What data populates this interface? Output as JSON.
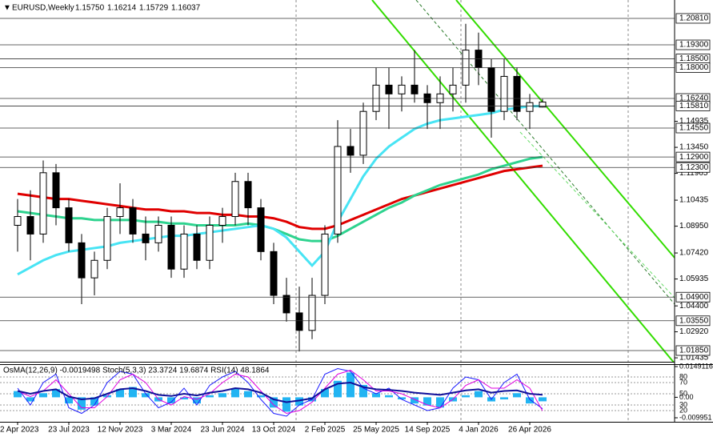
{
  "chart_data": [
    {
      "type": "candlestick",
      "title": "EURUSD,Weekly",
      "quote": [
        "1.15750",
        "1.16214",
        "1.15729",
        "1.16037"
      ],
      "x": [
        "2023-04-02",
        "2023-04-30",
        "2023-05-28",
        "2023-06-25",
        "2023-07-23",
        "2023-08-20",
        "2023-09-17",
        "2023-10-15",
        "2023-11-12",
        "2023-12-10",
        "2024-01-07",
        "2024-02-04",
        "2024-03-03",
        "2024-03-31",
        "2024-04-28",
        "2024-05-26",
        "2024-06-23",
        "2024-07-21",
        "2024-08-18",
        "2024-09-15",
        "2024-10-13",
        "2024-11-10",
        "2024-12-08",
        "2025-01-05",
        "2025-02-02",
        "2025-03-02",
        "2025-03-30",
        "2025-04-27",
        "2025-05-25",
        "2025-06-22",
        "2025-07-20",
        "2025-08-17",
        "2025-09-14",
        "2025-10-12",
        "2025-11-09",
        "2025-12-07",
        "2026-01-04",
        "2026-02-01",
        "2026-03-01",
        "2026-03-29",
        "2026-04-26",
        "2026-05-24"
      ],
      "open": [
        1.09,
        1.095,
        1.085,
        1.12,
        1.1,
        1.08,
        1.06,
        1.07,
        1.095,
        1.1,
        1.085,
        1.08,
        1.09,
        1.065,
        1.085,
        1.07,
        1.09,
        1.095,
        1.115,
        1.1,
        1.075,
        1.05,
        1.04,
        1.03,
        1.05,
        1.085,
        1.135,
        1.13,
        1.155,
        1.17,
        1.165,
        1.17,
        1.165,
        1.16,
        1.165,
        1.17,
        1.19,
        1.18,
        1.155,
        1.175,
        1.155,
        1.1575
      ],
      "high": [
        1.105,
        1.11,
        1.127,
        1.125,
        1.105,
        1.085,
        1.075,
        1.1,
        1.114,
        1.105,
        1.095,
        1.095,
        1.095,
        1.09,
        1.09,
        1.095,
        1.1,
        1.12,
        1.12,
        1.105,
        1.08,
        1.06,
        1.055,
        1.06,
        1.09,
        1.15,
        1.145,
        1.16,
        1.18,
        1.18,
        1.175,
        1.19,
        1.17,
        1.175,
        1.18,
        1.205,
        1.2,
        1.185,
        1.185,
        1.18,
        1.165,
        1.16214
      ],
      "low": [
        1.075,
        1.07,
        1.08,
        1.09,
        1.075,
        1.045,
        1.05,
        1.065,
        1.085,
        1.08,
        1.07,
        1.075,
        1.06,
        1.06,
        1.065,
        1.065,
        1.08,
        1.09,
        1.09,
        1.07,
        1.045,
        1.035,
        1.018,
        1.025,
        1.045,
        1.08,
        1.12,
        1.125,
        1.15,
        1.145,
        1.155,
        1.16,
        1.145,
        1.145,
        1.155,
        1.16,
        1.17,
        1.14,
        1.15,
        1.15,
        1.145,
        1.15729
      ],
      "close": [
        1.095,
        1.085,
        1.12,
        1.1,
        1.08,
        1.06,
        1.07,
        1.095,
        1.1,
        1.085,
        1.08,
        1.09,
        1.065,
        1.085,
        1.07,
        1.09,
        1.095,
        1.115,
        1.1,
        1.075,
        1.05,
        1.04,
        1.03,
        1.05,
        1.085,
        1.135,
        1.13,
        1.155,
        1.17,
        1.165,
        1.17,
        1.165,
        1.16,
        1.165,
        1.17,
        1.19,
        1.18,
        1.155,
        1.175,
        1.155,
        1.16,
        1.16037
      ],
      "lines": [
        {
          "color": "#e00000",
          "values": [
            1.108,
            1.107,
            1.106,
            1.105,
            1.105,
            1.104,
            1.103,
            1.102,
            1.101,
            1.1,
            1.099,
            1.099,
            1.098,
            1.098,
            1.097,
            1.097,
            1.096,
            1.096,
            1.095,
            1.095,
            1.094,
            1.092,
            1.089,
            1.088,
            1.088,
            1.09,
            1.093,
            1.096,
            1.099,
            1.102,
            1.105,
            1.107,
            1.109,
            1.111,
            1.113,
            1.115,
            1.117,
            1.119,
            1.121,
            1.122,
            1.123,
            1.124
          ]
        },
        {
          "color": "#2ed38f",
          "values": [
            1.098,
            1.097,
            1.096,
            1.095,
            1.094,
            1.094,
            1.093,
            1.093,
            1.093,
            1.093,
            1.092,
            1.092,
            1.091,
            1.091,
            1.09,
            1.09,
            1.09,
            1.09,
            1.091,
            1.09,
            1.088,
            1.085,
            1.082,
            1.081,
            1.081,
            1.084,
            1.088,
            1.092,
            1.096,
            1.1,
            1.103,
            1.107,
            1.11,
            1.113,
            1.115,
            1.117,
            1.119,
            1.122,
            1.124,
            1.126,
            1.128,
            1.129
          ]
        },
        {
          "color": "#48e4f4",
          "values": [
            1.062,
            1.066,
            1.07,
            1.073,
            1.075,
            1.076,
            1.077,
            1.078,
            1.08,
            1.081,
            1.082,
            1.083,
            1.084,
            1.084,
            1.085,
            1.086,
            1.087,
            1.088,
            1.089,
            1.09,
            1.088,
            1.083,
            1.075,
            1.067,
            1.075,
            1.092,
            1.105,
            1.118,
            1.128,
            1.135,
            1.14,
            1.145,
            1.148,
            1.15,
            1.151,
            1.152,
            1.153,
            1.154,
            1.156,
            1.157,
            1.158,
            1.158
          ]
        }
      ],
      "ylim": [
        1.0121,
        1.2186
      ],
      "xticks": [
        {
          "value": "2023-04-02",
          "label": "2 Apr 2023"
        },
        {
          "value": "2023-07-23",
          "label": "23 Jul 2023"
        },
        {
          "value": "2023-11-12",
          "label": "12 Nov 2023"
        },
        {
          "value": "2024-03-03",
          "label": "3 Mar 2024"
        },
        {
          "value": "2024-06-23",
          "label": "23 Jun 2024"
        },
        {
          "value": "2024-10-13",
          "label": "13 Oct 2024"
        },
        {
          "value": "2025-02-02",
          "label": "2 Feb 2025"
        },
        {
          "value": "2025-05-25",
          "label": "25 May 2025"
        },
        {
          "value": "2025-09-14",
          "label": "14 Sep 2025"
        },
        {
          "value": "2026-01-04",
          "label": "4 Jan 2026"
        },
        {
          "value": "2026-04-26",
          "label": "26 Apr 2026"
        }
      ],
      "yticks": [
        {
          "value": 1.14935,
          "label": "1.14935"
        },
        {
          "value": 1.1345,
          "label": "1.13450"
        },
        {
          "value": 1.11965,
          "label": "1.11965"
        },
        {
          "value": 1.10435,
          "label": "1.10435"
        },
        {
          "value": 1.0895,
          "label": "1.08950"
        },
        {
          "value": 1.0742,
          "label": "1.07420"
        },
        {
          "value": 1.05935,
          "label": "1.05935"
        },
        {
          "value": 1.044,
          "label": "1.04400"
        },
        {
          "value": 1.0292,
          "label": "1.02920"
        },
        {
          "value": 1.01435,
          "label": "1.01435"
        }
      ],
      "levels": [
        {
          "value": 1.2081,
          "label": "1.20810"
        },
        {
          "value": 1.193,
          "label": "1.19300"
        },
        {
          "value": 1.185,
          "label": "1.18500"
        },
        {
          "value": 1.18,
          "label": "1.18000"
        },
        {
          "value": 1.1624,
          "label": "1.16240"
        },
        {
          "value": 1.1581,
          "label": "1.15810"
        },
        {
          "value": 1.1455,
          "label": "1.14550"
        },
        {
          "value": 1.129,
          "label": "1.12900"
        },
        {
          "value": 1.123,
          "label": "1.12300"
        },
        {
          "value": 1.049,
          "label": "1.04900"
        },
        {
          "value": 1.0355,
          "label": "1.03550"
        },
        {
          "value": 1.0185,
          "label": "1.01850"
        }
      ],
      "grid": false
    },
    {
      "type": "oscillator",
      "title": "OsMA(12,26,9) -0.0019498  Stoch(5,3,3) 23.3724 19.6874  RSI(14) 48.1864",
      "osma_color": "#22b4f2",
      "osma": [
        0.003,
        -0.002,
        0.002,
        0.004,
        -0.003,
        -0.006,
        -0.004,
        0.001,
        0.004,
        0.005,
        0.002,
        -0.002,
        -0.003,
        -0.001,
        -0.003,
        0.001,
        0.002,
        0.004,
        0.003,
        0.001,
        -0.005,
        -0.007,
        -0.004,
        -0.002,
        0.004,
        0.008,
        0.012,
        0.006,
        0.002,
        0.001,
        -0.001,
        -0.003,
        -0.004,
        -0.005,
        -0.002,
        0.001,
        0.003,
        -0.002,
        -0.001,
        0.002,
        -0.003,
        -0.0019498
      ],
      "lines": [
        {
          "color": "#1a1aff",
          "values": [
            60,
            30,
            70,
            85,
            25,
            15,
            30,
            70,
            90,
            85,
            50,
            25,
            35,
            60,
            30,
            65,
            80,
            90,
            70,
            40,
            15,
            10,
            30,
            40,
            85,
            95,
            90,
            60,
            50,
            60,
            40,
            30,
            20,
            25,
            60,
            80,
            75,
            40,
            70,
            85,
            40,
            23.3724
          ]
        },
        {
          "color": "#e000e0",
          "values": [
            55,
            45,
            55,
            75,
            50,
            25,
            25,
            45,
            75,
            85,
            70,
            40,
            30,
            45,
            40,
            50,
            70,
            85,
            80,
            55,
            30,
            15,
            20,
            35,
            60,
            85,
            92,
            75,
            55,
            55,
            50,
            40,
            30,
            25,
            40,
            65,
            75,
            60,
            60,
            75,
            60,
            19.6874
          ]
        },
        {
          "color": "#10109a",
          "values": [
            55,
            50,
            55,
            58,
            45,
            40,
            42,
            50,
            58,
            60,
            55,
            48,
            46,
            50,
            47,
            52,
            55,
            60,
            58,
            52,
            40,
            35,
            38,
            42,
            58,
            68,
            70,
            62,
            58,
            57,
            55,
            52,
            50,
            48,
            52,
            56,
            58,
            52,
            55,
            56,
            50,
            48.1864
          ]
        }
      ],
      "ylim": [
        0,
        100
      ],
      "yticks": [
        80,
        70,
        50,
        30,
        20
      ],
      "y2lim": [
        -0.009951,
        0.0149116
      ],
      "y2ticks": [
        0.0149116,
        {
          "value": 0,
          "label": "0.00"
        },
        -0.009951
      ]
    }
  ]
}
